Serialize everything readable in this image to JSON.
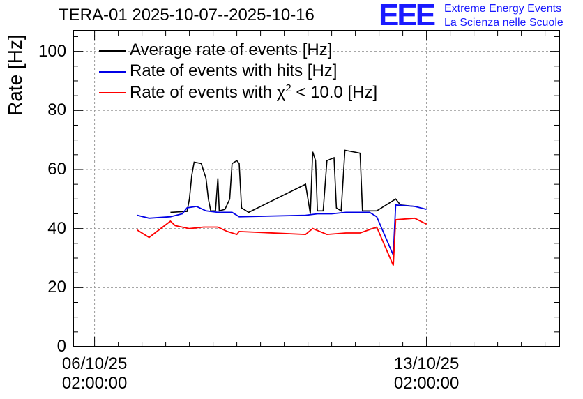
{
  "chart_data": {
    "type": "line",
    "title": "TERA-01 2025-10-07--2025-10-16",
    "ylabel": "Rate [Hz]",
    "xlabel": "",
    "ylim": [
      0,
      107
    ],
    "xlim_days": [
      -0.45,
      9.8
    ],
    "y_ticks": [
      {
        "value": 0,
        "label": "0"
      },
      {
        "value": 20,
        "label": "20"
      },
      {
        "value": 40,
        "label": "40"
      },
      {
        "value": 60,
        "label": "60"
      },
      {
        "value": 80,
        "label": "80"
      },
      {
        "value": 100,
        "label": "100"
      }
    ],
    "x_ticks": [
      {
        "day": 0,
        "date": "06/10/25",
        "time": "02:00:00"
      },
      {
        "day": 7,
        "date": "13/10/25",
        "time": "02:00:00"
      }
    ],
    "grid": true,
    "legend_position": "top-left",
    "series": [
      {
        "name": "Average rate of events [Hz]",
        "color": "#000000",
        "points": [
          [
            1.6,
            45.5
          ],
          [
            1.95,
            45.8
          ],
          [
            2.0,
            50
          ],
          [
            2.05,
            58
          ],
          [
            2.1,
            62.5
          ],
          [
            2.25,
            62
          ],
          [
            2.35,
            57
          ],
          [
            2.4,
            50
          ],
          [
            2.45,
            46
          ],
          [
            2.55,
            46
          ],
          [
            2.6,
            57
          ],
          [
            2.63,
            46
          ],
          [
            2.75,
            46.5
          ],
          [
            2.85,
            50
          ],
          [
            2.9,
            62
          ],
          [
            3.0,
            63
          ],
          [
            3.05,
            62
          ],
          [
            3.1,
            47
          ],
          [
            3.25,
            45.5
          ],
          [
            4.45,
            55
          ],
          [
            4.55,
            45
          ],
          [
            4.6,
            66
          ],
          [
            4.66,
            63
          ],
          [
            4.7,
            46
          ],
          [
            4.82,
            46
          ],
          [
            4.9,
            63
          ],
          [
            5.05,
            64
          ],
          [
            5.1,
            47
          ],
          [
            5.2,
            46
          ],
          [
            5.28,
            66.5
          ],
          [
            5.45,
            66
          ],
          [
            5.6,
            65.5
          ],
          [
            5.65,
            46
          ],
          [
            5.95,
            46
          ],
          [
            6.35,
            50
          ],
          [
            6.45,
            48
          ],
          [
            6.75,
            47.5
          ]
        ]
      },
      {
        "name": "Rate of events with hits [Hz]",
        "color": "#0000e6",
        "points": [
          [
            0.9,
            44.5
          ],
          [
            1.15,
            43.5
          ],
          [
            1.6,
            44
          ],
          [
            1.85,
            45
          ],
          [
            1.95,
            47
          ],
          [
            2.15,
            47.5
          ],
          [
            2.35,
            46
          ],
          [
            2.6,
            45.5
          ],
          [
            2.9,
            45.5
          ],
          [
            3.0,
            44.5
          ],
          [
            3.05,
            44
          ],
          [
            4.45,
            44.5
          ],
          [
            4.7,
            45
          ],
          [
            5.0,
            45
          ],
          [
            5.3,
            45.5
          ],
          [
            5.8,
            45.5
          ],
          [
            5.95,
            44
          ],
          [
            6.3,
            31
          ],
          [
            6.35,
            48
          ],
          [
            6.75,
            47.5
          ],
          [
            7.0,
            46.5
          ]
        ]
      },
      {
        "name": "Rate of events with χ² < 10.0 [Hz]",
        "color": "#ff0000",
        "points": [
          [
            0.9,
            39.5
          ],
          [
            1.15,
            37
          ],
          [
            1.6,
            42.5
          ],
          [
            1.7,
            41
          ],
          [
            2.0,
            40
          ],
          [
            2.3,
            40.5
          ],
          [
            2.6,
            40.5
          ],
          [
            2.8,
            39
          ],
          [
            3.0,
            38
          ],
          [
            3.05,
            39
          ],
          [
            4.45,
            38
          ],
          [
            4.6,
            40
          ],
          [
            4.9,
            38
          ],
          [
            5.3,
            38.5
          ],
          [
            5.6,
            38.5
          ],
          [
            5.95,
            40.5
          ],
          [
            6.3,
            27.5
          ],
          [
            6.35,
            43
          ],
          [
            6.75,
            43.5
          ],
          [
            7.0,
            41.5
          ]
        ]
      }
    ]
  },
  "legend": {
    "avg": "Average rate of events [Hz]",
    "hits": "Rate of events with hits [Hz]",
    "chi_prefix": "Rate of events with χ",
    "chi_sup": "2",
    "chi_suffix": " < 10.0 [Hz]"
  },
  "logo": {
    "mark": "EEE",
    "line1": "Extreme Energy Events",
    "line2": "La Scienza nelle Scuole"
  }
}
